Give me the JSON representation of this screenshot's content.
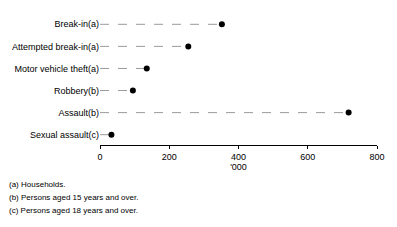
{
  "chart_data": {
    "type": "dot",
    "orientation": "horizontal",
    "categories": [
      "Break-in(a)",
      "Attempted break-in(a)",
      "Motor vehicle theft(a)",
      "Robbery(b)",
      "Assault(b)",
      "Sexual assault(c)"
    ],
    "values": [
      352,
      255,
      135,
      95,
      718,
      33
    ],
    "color": "#000000",
    "line_style": "dashed",
    "marker": "circle",
    "xlim": [
      0,
      800
    ],
    "xticks": [
      0,
      200,
      400,
      600,
      800
    ],
    "x_label": "'000",
    "grid": false,
    "annotations": [
      "(a) Households.",
      "(b) Persons aged 15 years and over.",
      "(c) Persons aged 18 years and over."
    ]
  }
}
